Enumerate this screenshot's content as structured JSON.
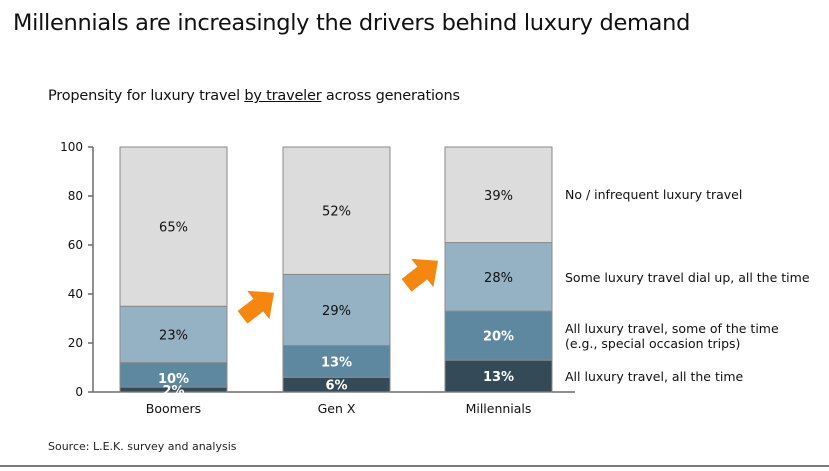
{
  "header": {
    "title": "Millennials are increasingly the drivers behind luxury demand",
    "subtitle_pre": "Propensity for luxury travel ",
    "subtitle_underlined": "by traveler",
    "subtitle_post": " across generations"
  },
  "footer": {
    "source": "Source: L.E.K. survey and analysis"
  },
  "chart_data": {
    "type": "bar",
    "stacked": true,
    "title": "Propensity for luxury travel by traveler across generations",
    "xlabel": "",
    "ylabel": "",
    "ylim": [
      0,
      100
    ],
    "yticks": [
      0,
      20,
      40,
      60,
      80,
      100
    ],
    "grid": false,
    "legend_position": "right",
    "categories": [
      "Boomers",
      "Gen X",
      "Millennials"
    ],
    "series": [
      {
        "name": "All luxury travel, all the time",
        "values": [
          2,
          6,
          13
        ],
        "labels": [
          "2%",
          "6%",
          "13%"
        ],
        "color": "#344a57",
        "label_color": "#ffffff"
      },
      {
        "name": "All luxury travel, some of the time (e.g., special occasion trips)",
        "legend_lines": [
          "All luxury travel, some of the time",
          "(e.g., special occasion trips)"
        ],
        "values": [
          10,
          13,
          20
        ],
        "labels": [
          "10%",
          "13%",
          "20%"
        ],
        "color": "#5e87a0",
        "label_color": "#ffffff"
      },
      {
        "name": "Some luxury travel dial up, all the time",
        "values": [
          23,
          29,
          28
        ],
        "labels": [
          "23%",
          "29%",
          "28%"
        ],
        "color": "#95b1c4",
        "label_color": "#111111"
      },
      {
        "name": "No / infrequent luxury travel",
        "values": [
          65,
          52,
          39
        ],
        "labels": [
          "65%",
          "52%",
          "39%"
        ],
        "color": "#dcdcdc",
        "label_color": "#111111"
      }
    ],
    "annotations": [
      {
        "type": "arrow",
        "direction": "up-right",
        "between": [
          "Boomers",
          "Gen X"
        ],
        "color": "#f5870f"
      },
      {
        "type": "arrow",
        "direction": "up-right",
        "between": [
          "Gen X",
          "Millennials"
        ],
        "color": "#f5870f"
      }
    ]
  }
}
